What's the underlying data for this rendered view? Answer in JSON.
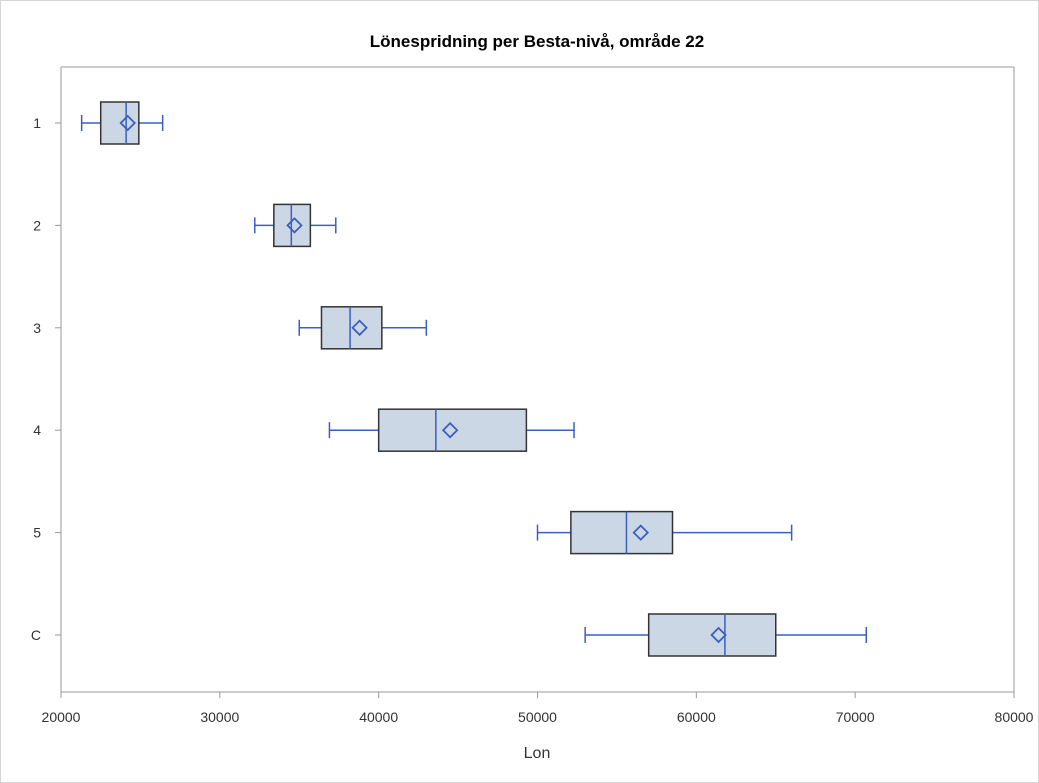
{
  "chart_data": {
    "type": "boxplot",
    "orientation": "horizontal",
    "title": "Lönespridning per Besta-nivå, område 22",
    "xlabel": "Lon",
    "ylabel": "",
    "xlim": [
      20000,
      80000
    ],
    "xticks": [
      20000,
      30000,
      40000,
      50000,
      60000,
      70000,
      80000
    ],
    "grid": false,
    "categories": [
      "1",
      "2",
      "3",
      "4",
      "5",
      "C"
    ],
    "boxes": [
      {
        "category": "1",
        "min": 21300,
        "q1": 22500,
        "median": 24100,
        "q3": 24900,
        "max": 26400,
        "mean": 24200
      },
      {
        "category": "2",
        "min": 32200,
        "q1": 33400,
        "median": 34500,
        "q3": 35700,
        "max": 37300,
        "mean": 34700
      },
      {
        "category": "3",
        "min": 35000,
        "q1": 36400,
        "median": 38200,
        "q3": 40200,
        "max": 43000,
        "mean": 38800
      },
      {
        "category": "4",
        "min": 36900,
        "q1": 40000,
        "median": 43600,
        "q3": 49300,
        "max": 52300,
        "mean": 44500
      },
      {
        "category": "5",
        "min": 50000,
        "q1": 52100,
        "median": 55600,
        "q3": 58500,
        "max": 66000,
        "mean": 56500
      },
      {
        "category": "C",
        "min": 53000,
        "q1": 57000,
        "median": 61800,
        "q3": 65000,
        "max": 70700,
        "mean": 61400
      }
    ],
    "colors": {
      "box_fill": "#ccd7e6",
      "box_edge": "#333333",
      "whisker": "#3a5fc0",
      "median": "#3a5fc0",
      "mean_marker": "#3a5fc0",
      "axis": "#999999"
    }
  }
}
